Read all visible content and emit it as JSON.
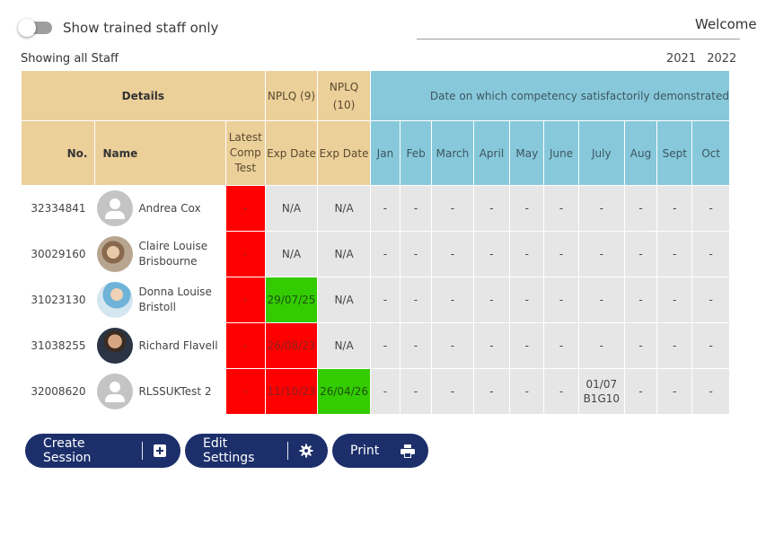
{
  "filter": {
    "toggle_label": "Show trained staff only"
  },
  "header": {
    "welcome": "Welcome"
  },
  "status": {
    "showing": "Showing all Staff"
  },
  "years": [
    "2021",
    "2022"
  ],
  "table": {
    "group_details": "Details",
    "group_nplq9": "NPLQ (9)",
    "group_nplq10": "NPLQ\n(10)",
    "group_competency": "Date on which competency satisfactorily demonstrated",
    "col_no": "No.",
    "col_name": "Name",
    "col_latest": "Latest Comp Test",
    "col_exp9": "Exp Date",
    "col_exp10": "Exp Date",
    "months": [
      "Jan",
      "Feb",
      "March",
      "April",
      "May",
      "June",
      "July",
      "Aug",
      "Sept",
      "Oct"
    ],
    "rows": [
      {
        "no": "32334841",
        "name": "Andrea Cox",
        "latest": "-",
        "exp9": "N/A",
        "exp10": "N/A",
        "months": [
          "-",
          "-",
          "-",
          "-",
          "-",
          "-",
          "-",
          "-",
          "-",
          "-"
        ]
      },
      {
        "no": "30029160",
        "name": "Claire Louise Brisbourne",
        "latest": "-",
        "exp9": "N/A",
        "exp10": "N/A",
        "months": [
          "-",
          "-",
          "-",
          "-",
          "-",
          "-",
          "-",
          "-",
          "-",
          "-"
        ]
      },
      {
        "no": "31023130",
        "name": "Donna Louise Bristoll",
        "latest": "-",
        "exp9": "29/07/25",
        "exp10": "N/A",
        "months": [
          "-",
          "-",
          "-",
          "-",
          "-",
          "-",
          "-",
          "-",
          "-",
          "-"
        ]
      },
      {
        "no": "31038255",
        "name": "Richard Flavell",
        "latest": "-",
        "exp9": "26/08/23",
        "exp10": "N/A",
        "months": [
          "-",
          "-",
          "-",
          "-",
          "-",
          "-",
          "-",
          "-",
          "-",
          "-"
        ]
      },
      {
        "no": "32008620",
        "name": "RLSSUKTest 2",
        "latest": "-",
        "exp9": "11/10/23",
        "exp10": "26/04/26",
        "months": [
          "-",
          "-",
          "-",
          "-",
          "-",
          "-",
          "01/07 B1G10",
          "-",
          "-",
          "-"
        ]
      }
    ]
  },
  "actions": {
    "create_session": "Create Session",
    "edit_settings": "Edit Settings",
    "print": "Print"
  },
  "colors": {
    "tan": "#ecd09a",
    "blue": "#87c9db",
    "red": "#ff0000",
    "green": "#33cc00",
    "button": "#1c2f6b"
  }
}
